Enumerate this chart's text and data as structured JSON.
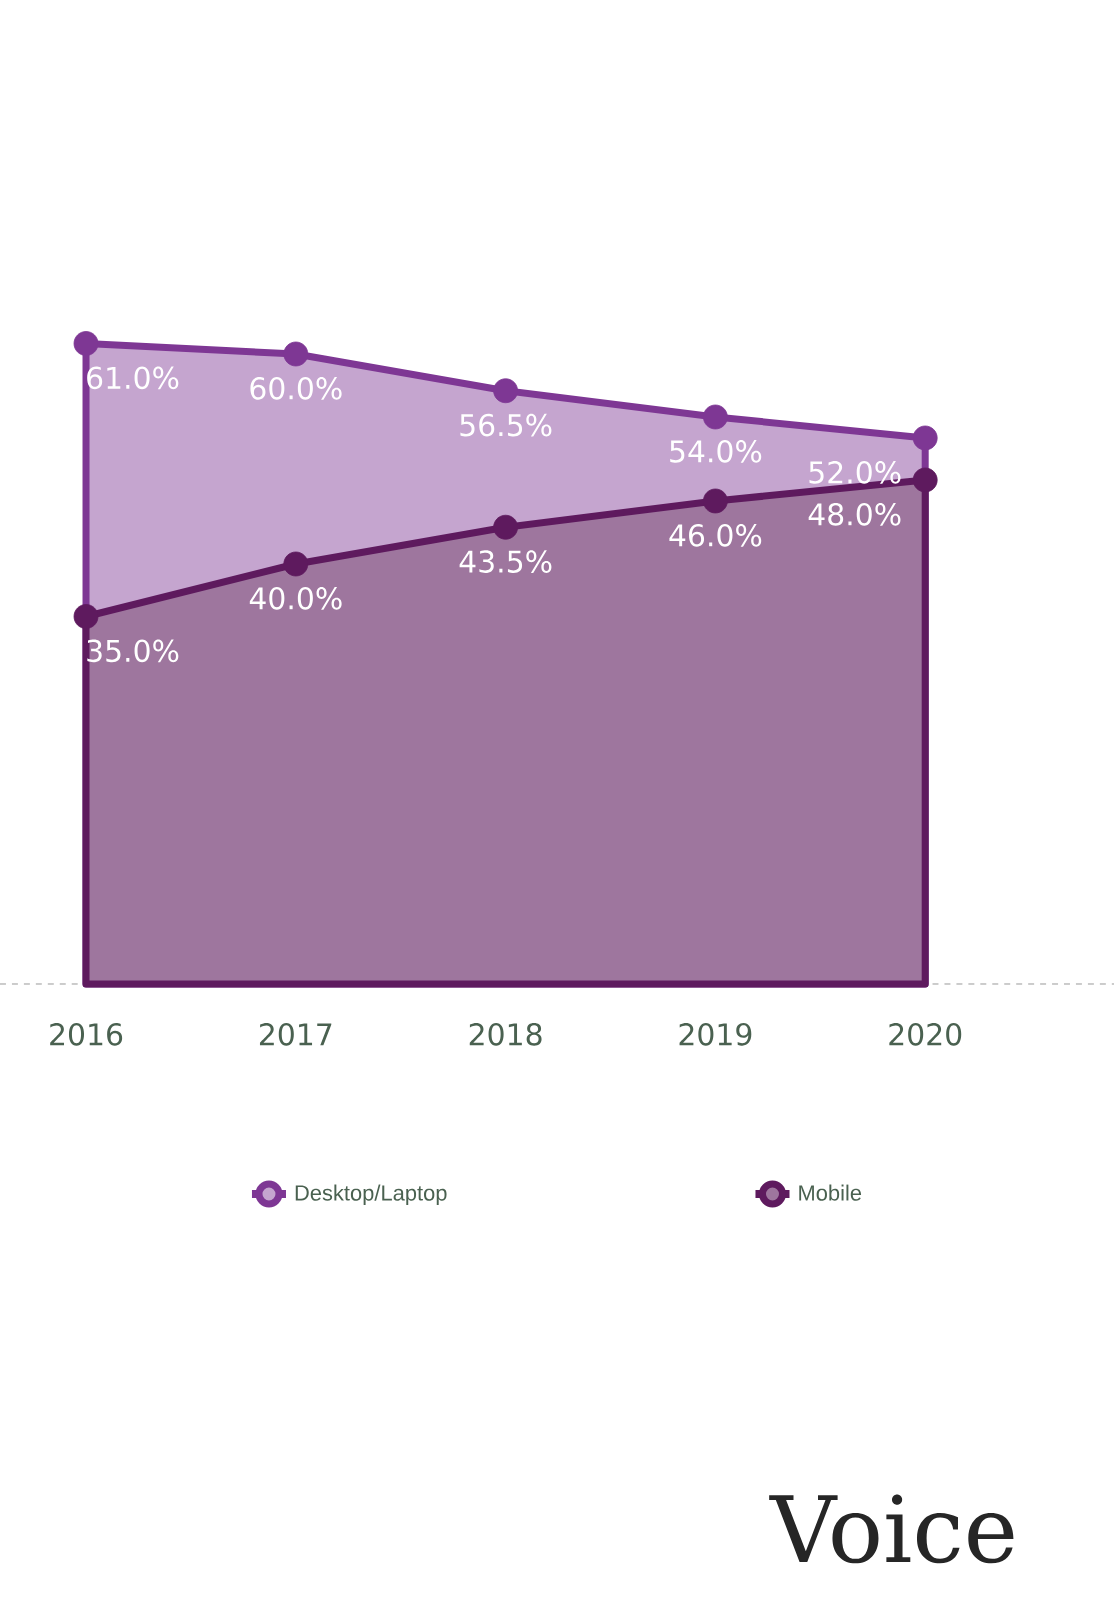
{
  "chart_data": {
    "type": "area",
    "categories": [
      "2016",
      "2017",
      "2018",
      "2019",
      "2020"
    ],
    "series": [
      {
        "name": "Desktop/Laptop",
        "color": "#7e3794",
        "values": [
          61.0,
          60.0,
          56.5,
          54.0,
          52.0
        ],
        "value_labels": [
          "61.0%",
          "60.0%",
          "56.5%",
          "54.0%",
          "52.0%"
        ]
      },
      {
        "name": "Mobile",
        "color": "#5e1a5e",
        "values": [
          35.0,
          40.0,
          43.5,
          46.0,
          48.0
        ],
        "value_labels": [
          "35.0%",
          "40.0%",
          "43.5%",
          "46.0%",
          "48.0%"
        ]
      }
    ],
    "legend": "bottom",
    "marker": "circle",
    "annotations": [
      "Voice"
    ]
  }
}
